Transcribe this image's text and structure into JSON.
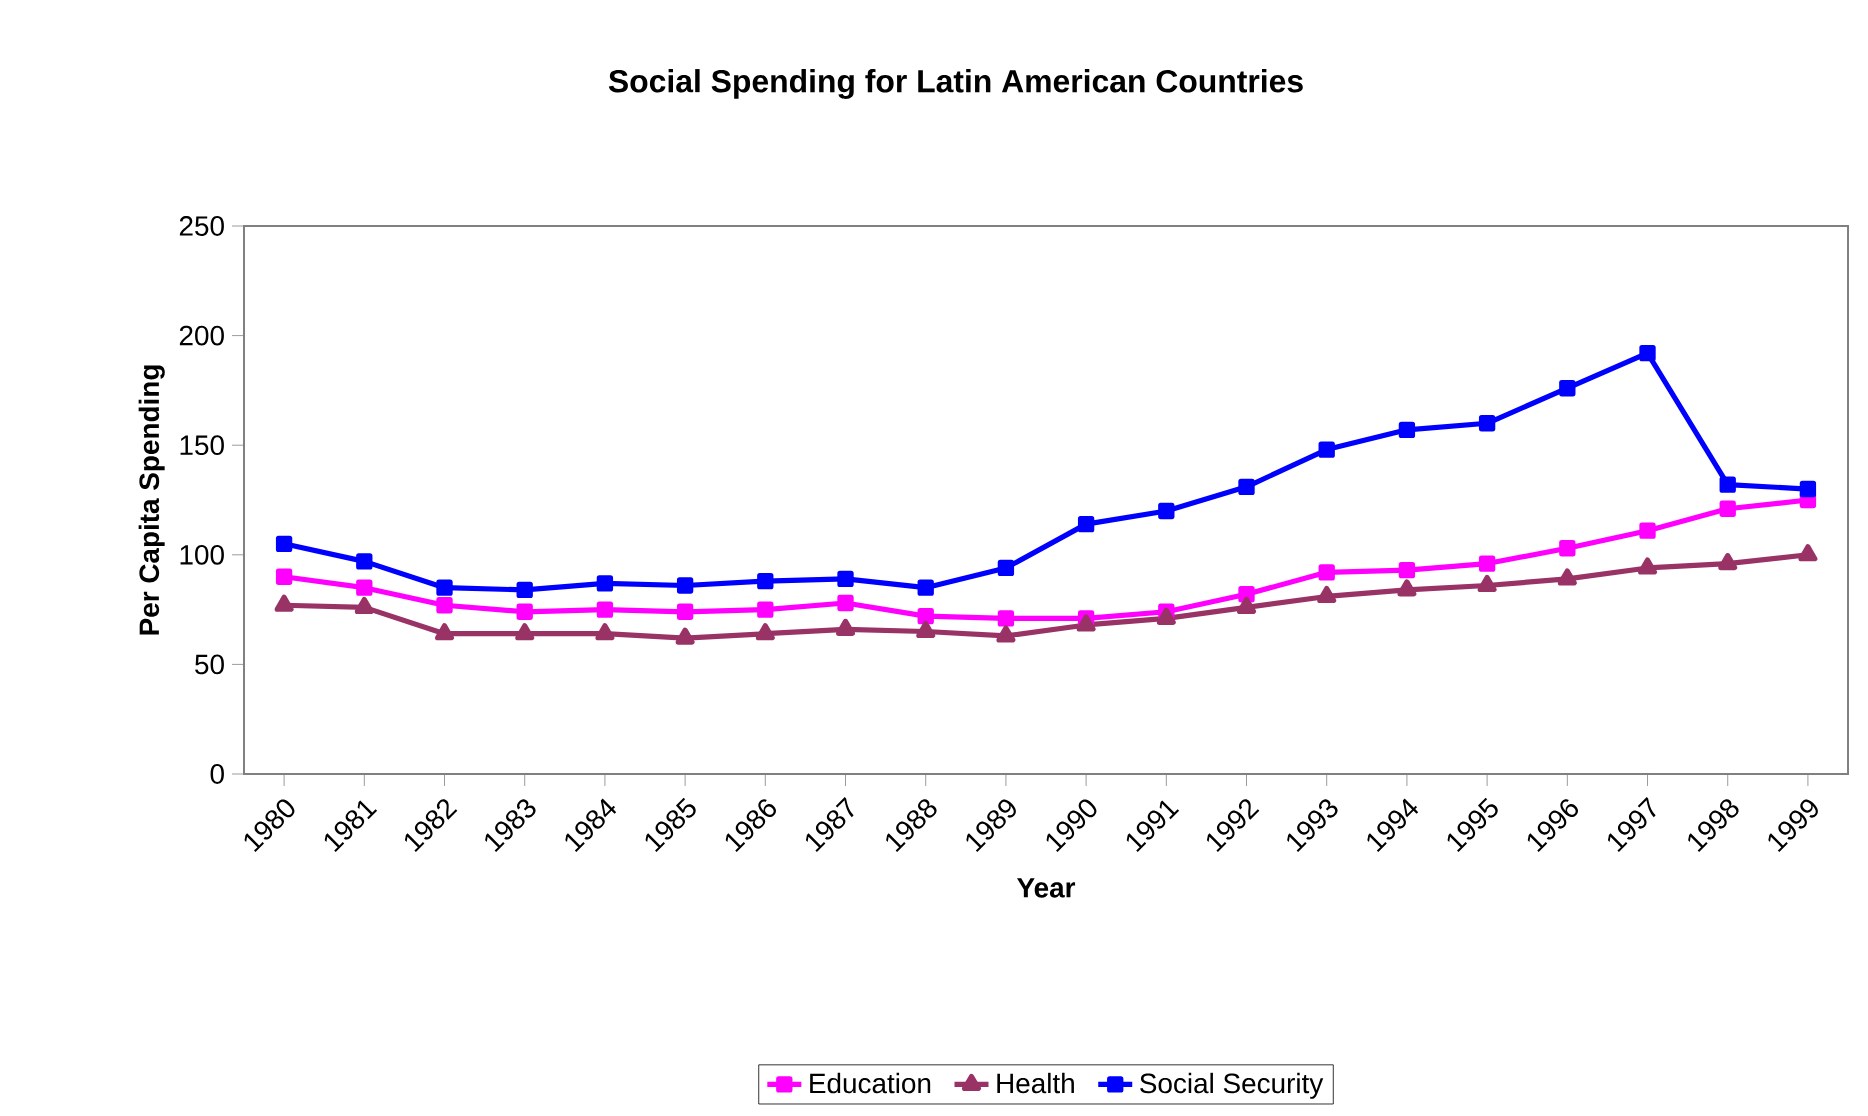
{
  "chart_data": {
    "type": "line",
    "title": "Social Spending for Latin American Countries",
    "xlabel": "Year",
    "ylabel": "Per Capita Spending",
    "categories": [
      "1980",
      "1981",
      "1982",
      "1983",
      "1984",
      "1985",
      "1986",
      "1987",
      "1988",
      "1989",
      "1990",
      "1991",
      "1992",
      "1993",
      "1994",
      "1995",
      "1996",
      "1997",
      "1998",
      "1999"
    ],
    "series": [
      {
        "name": "Education",
        "color": "#ff00ff",
        "marker": "square",
        "values": [
          90,
          85,
          77,
          74,
          75,
          74,
          75,
          78,
          72,
          71,
          71,
          74,
          82,
          92,
          93,
          96,
          103,
          111,
          121,
          125
        ]
      },
      {
        "name": "Health",
        "color": "#993366",
        "marker": "triangle",
        "values": [
          77,
          76,
          64,
          64,
          64,
          62,
          64,
          66,
          65,
          63,
          68,
          71,
          76,
          81,
          84,
          86,
          89,
          94,
          96,
          100
        ]
      },
      {
        "name": "Social Security",
        "color": "#0000ff",
        "marker": "square",
        "values": [
          105,
          97,
          85,
          84,
          87,
          86,
          88,
          89,
          85,
          94,
          114,
          120,
          131,
          148,
          157,
          160,
          176,
          192,
          132,
          130
        ]
      }
    ],
    "ylim": [
      0,
      250
    ],
    "yticks": [
      0,
      50,
      100,
      150,
      200,
      250
    ],
    "grid": false,
    "legend": "bottom",
    "line_style": "solid"
  }
}
